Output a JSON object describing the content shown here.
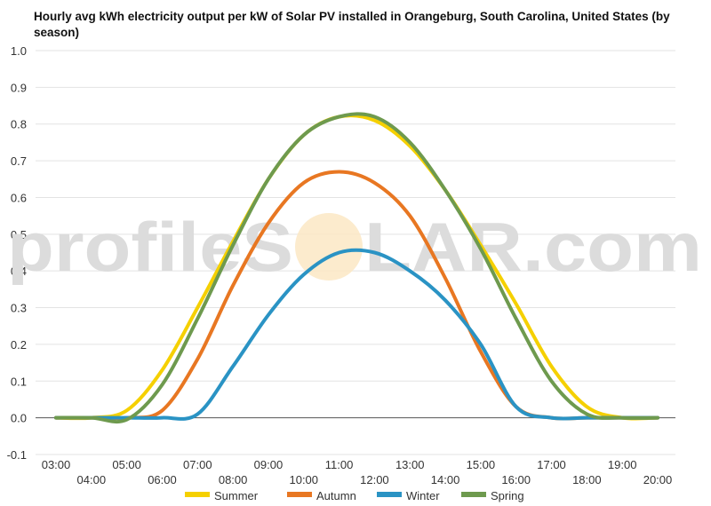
{
  "chart_data": {
    "type": "line",
    "title": "Hourly avg kWh electricity output per kW of Solar PV installed in Orangeburg, South Carolina, United States (by season)",
    "xlabel": "",
    "ylabel": "",
    "ylim": [
      -0.1,
      1.0
    ],
    "yticks": [
      "-0.1",
      "0.0",
      "0.1",
      "0.2",
      "0.3",
      "0.4",
      "0.5",
      "0.6",
      "0.7",
      "0.8",
      "0.9",
      "1.0"
    ],
    "categories": [
      "03:00",
      "04:00",
      "05:00",
      "06:00",
      "07:00",
      "08:00",
      "09:00",
      "10:00",
      "11:00",
      "12:00",
      "13:00",
      "14:00",
      "15:00",
      "16:00",
      "17:00",
      "18:00",
      "19:00",
      "20:00"
    ],
    "grid": true,
    "legend_position": "bottom",
    "watermark": {
      "left": "profileS",
      "right": "LAR.com"
    },
    "series": [
      {
        "name": "Summer",
        "color": "#f5d000",
        "values": [
          0,
          0,
          0.02,
          0.13,
          0.3,
          0.48,
          0.65,
          0.77,
          0.82,
          0.81,
          0.74,
          0.62,
          0.47,
          0.31,
          0.14,
          0.03,
          0,
          0
        ]
      },
      {
        "name": "Autumn",
        "color": "#e87722",
        "values": [
          0,
          0,
          0,
          0.02,
          0.16,
          0.36,
          0.53,
          0.64,
          0.67,
          0.64,
          0.55,
          0.38,
          0.18,
          0.03,
          0,
          0,
          0,
          0
        ]
      },
      {
        "name": "Winter",
        "color": "#2a93c4",
        "values": [
          0,
          0,
          0,
          0,
          0.01,
          0.14,
          0.28,
          0.39,
          0.45,
          0.45,
          0.4,
          0.32,
          0.2,
          0.03,
          0,
          0,
          0,
          0
        ]
      },
      {
        "name": "Spring",
        "color": "#6e9a4e",
        "values": [
          0,
          0,
          -0.005,
          0.09,
          0.27,
          0.47,
          0.65,
          0.77,
          0.82,
          0.82,
          0.75,
          0.62,
          0.46,
          0.27,
          0.1,
          0.01,
          0,
          0
        ]
      }
    ]
  }
}
